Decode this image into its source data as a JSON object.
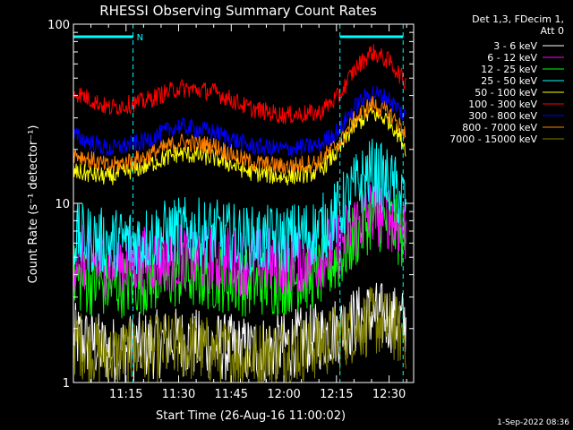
{
  "chart_data": {
    "type": "line",
    "title": "RHESSI Observing Summary Count Rates",
    "xlabel": "Start Time (26-Aug-16 11:00:02)",
    "ylabel": "Count Rate (s⁻¹ detector⁻¹)",
    "yscale": "log",
    "ylim": [
      1,
      100
    ],
    "xlim_minutes_after_1100": [
      0,
      97
    ],
    "x_ticks": [
      "11:15",
      "11:30",
      "11:45",
      "12:00",
      "12:15",
      "12:30"
    ],
    "x_tick_minutes": [
      15,
      30,
      45,
      60,
      75,
      90
    ],
    "y_ticks": [
      "1",
      "10",
      "100"
    ],
    "y_tick_values": [
      1,
      10,
      100
    ],
    "grid": false,
    "legend_placement": "top-right",
    "legend_header": [
      "Det 1,3, FDecim 1,",
      "Att 0"
    ],
    "annotations": {
      "night_marker_label": "N",
      "cyan_bars": [
        [
          0,
          17
        ],
        [
          76,
          94
        ]
      ],
      "cyan_vlines_minutes": [
        17,
        76,
        94
      ]
    },
    "series": [
      {
        "name": "3 - 6 keV",
        "color": "#ffffff",
        "x": [
          0,
          10,
          20,
          30,
          40,
          50,
          60,
          70,
          76,
          80,
          85,
          90,
          95
        ],
        "y": [
          1.8,
          1.5,
          1.6,
          1.7,
          1.6,
          1.5,
          1.6,
          1.8,
          2.0,
          2.2,
          2.4,
          2.3,
          2.1
        ]
      },
      {
        "name": "6 - 12 keV",
        "color": "#ff00ff",
        "x": [
          0,
          10,
          20,
          30,
          40,
          50,
          60,
          70,
          76,
          80,
          85,
          90,
          95
        ],
        "y": [
          5.0,
          4.6,
          4.8,
          5.0,
          4.9,
          4.7,
          4.8,
          5.0,
          6.0,
          7.5,
          9.0,
          8.5,
          7.0
        ]
      },
      {
        "name": "12 - 25 keV",
        "color": "#00ff00",
        "x": [
          0,
          10,
          20,
          30,
          40,
          50,
          60,
          70,
          76,
          80,
          85,
          90,
          95
        ],
        "y": [
          3.8,
          3.5,
          3.7,
          4.0,
          3.9,
          3.6,
          3.7,
          4.0,
          5.0,
          6.5,
          8.5,
          8.0,
          6.0
        ]
      },
      {
        "name": "25 - 50 keV",
        "color": "#00ffff",
        "x": [
          0,
          10,
          20,
          30,
          40,
          50,
          60,
          70,
          76,
          80,
          85,
          90,
          95
        ],
        "y": [
          6.5,
          6.0,
          6.3,
          7.0,
          6.8,
          6.2,
          6.3,
          7.0,
          9.0,
          12.0,
          15.0,
          13.0,
          10.0
        ]
      },
      {
        "name": "50 - 100 keV",
        "color": "#ffff00",
        "x": [
          0,
          10,
          20,
          30,
          40,
          50,
          60,
          70,
          76,
          80,
          85,
          90,
          95
        ],
        "y": [
          15,
          14,
          16,
          19,
          18,
          15,
          14,
          15,
          20,
          27,
          32,
          29,
          20
        ]
      },
      {
        "name": "100 - 300 keV",
        "color": "#ff0000",
        "x": [
          0,
          10,
          20,
          30,
          40,
          50,
          60,
          70,
          76,
          80,
          85,
          90,
          95
        ],
        "y": [
          42,
          34,
          37,
          44,
          42,
          34,
          31,
          32,
          40,
          55,
          70,
          62,
          46
        ]
      },
      {
        "name": "300 - 800 keV",
        "color": "#0000ff",
        "x": [
          0,
          10,
          20,
          30,
          40,
          50,
          60,
          70,
          76,
          80,
          85,
          90,
          95
        ],
        "y": [
          24,
          20,
          22,
          27,
          25,
          21,
          20,
          21,
          26,
          34,
          42,
          38,
          30
        ]
      },
      {
        "name": "800 - 7000 keV",
        "color": "#ff8000",
        "x": [
          0,
          10,
          20,
          30,
          40,
          50,
          60,
          70,
          76,
          80,
          85,
          90,
          95
        ],
        "y": [
          19,
          16,
          18,
          22,
          21,
          17,
          16,
          17,
          22,
          29,
          36,
          32,
          24
        ]
      },
      {
        "name": "7000 - 15000 keV",
        "color": "#808000",
        "x": [
          0,
          10,
          20,
          30,
          40,
          50,
          60,
          70,
          76,
          80,
          85,
          90,
          95
        ],
        "y": [
          1.7,
          1.4,
          1.5,
          1.6,
          1.5,
          1.4,
          1.5,
          1.6,
          1.8,
          2.0,
          2.2,
          2.1,
          1.8
        ]
      }
    ],
    "footer_timestamp": "1-Sep-2022 08:36"
  }
}
